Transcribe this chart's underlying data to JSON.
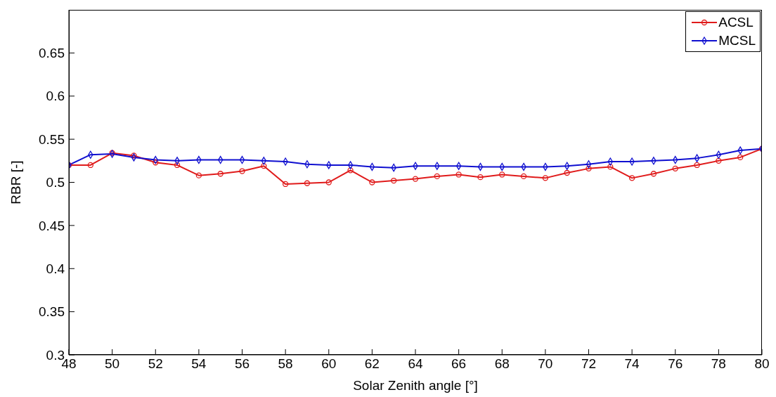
{
  "chart_data": {
    "type": "line",
    "xlabel": "Solar Zenith angle [°]",
    "ylabel": "RBR [-]",
    "x": [
      48,
      49,
      50,
      51,
      52,
      53,
      54,
      55,
      56,
      57,
      58,
      59,
      60,
      61,
      62,
      63,
      64,
      65,
      66,
      67,
      68,
      69,
      70,
      71,
      72,
      73,
      74,
      75,
      76,
      77,
      78,
      79,
      80
    ],
    "series": [
      {
        "name": "ACSL",
        "color": "#e01b1b",
        "marker": "circle",
        "values": [
          0.52,
          0.52,
          0.534,
          0.531,
          0.523,
          0.52,
          0.508,
          0.51,
          0.513,
          0.519,
          0.498,
          0.499,
          0.5,
          0.514,
          0.5,
          0.502,
          0.504,
          0.507,
          0.509,
          0.506,
          0.509,
          0.507,
          0.505,
          0.511,
          0.516,
          0.518,
          0.505,
          0.51,
          0.516,
          0.52,
          0.525,
          0.529,
          0.539
        ]
      },
      {
        "name": "MCSL",
        "color": "#1010d0",
        "marker": "diamond",
        "values": [
          0.52,
          0.532,
          0.533,
          0.529,
          0.526,
          0.525,
          0.526,
          0.526,
          0.526,
          0.525,
          0.524,
          0.521,
          0.52,
          0.52,
          0.518,
          0.517,
          0.519,
          0.519,
          0.519,
          0.518,
          0.518,
          0.518,
          0.518,
          0.519,
          0.521,
          0.524,
          0.524,
          0.525,
          0.526,
          0.528,
          0.532,
          0.537,
          0.539
        ]
      }
    ],
    "xlim": [
      48,
      80
    ],
    "xticks": [
      48,
      50,
      52,
      54,
      56,
      58,
      60,
      62,
      64,
      66,
      68,
      70,
      72,
      74,
      76,
      78,
      80
    ],
    "ylim": [
      0.3,
      0.7
    ],
    "yticks": [
      0.3,
      0.35,
      0.4,
      0.45,
      0.5,
      0.55,
      0.6,
      0.65
    ],
    "grid": false,
    "legend": "top right",
    "line_style": "solid"
  }
}
